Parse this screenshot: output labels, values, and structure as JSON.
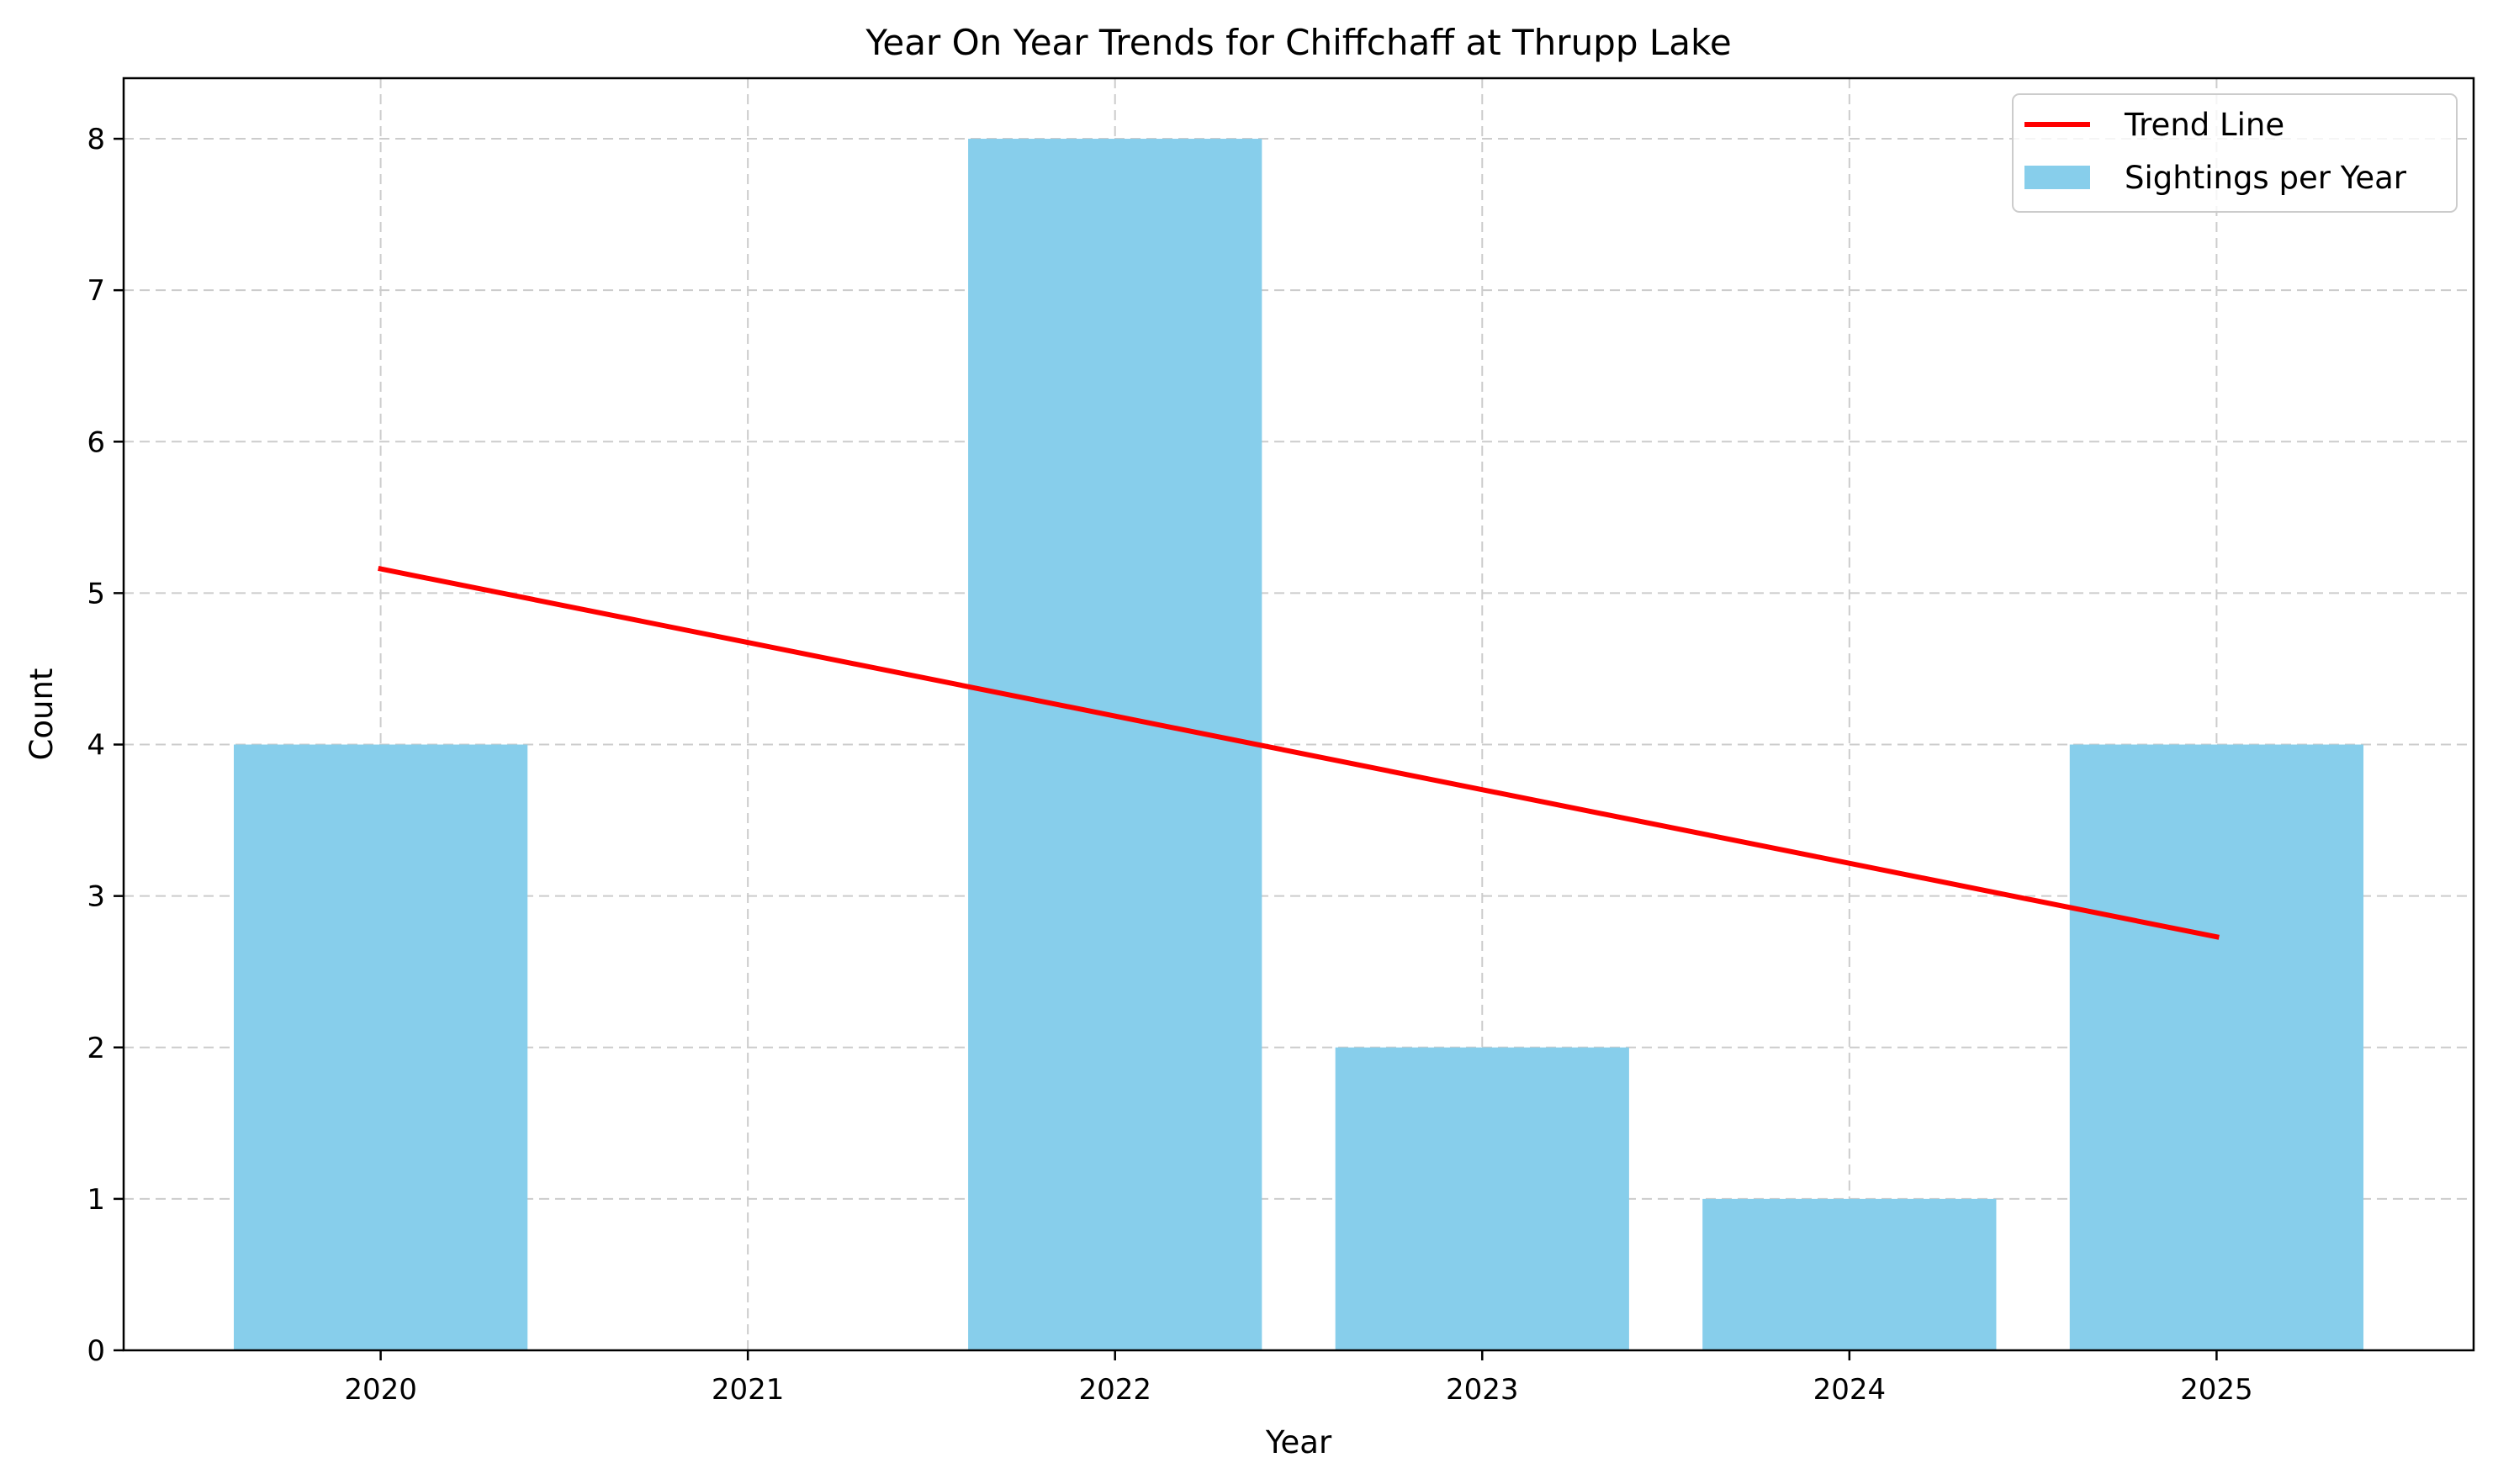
{
  "chart_data": {
    "type": "bar",
    "title": "Year On Year Trends for Chiffchaff at Thrupp Lake",
    "xlabel": "Year",
    "ylabel": "Count",
    "categories": [
      "2020",
      "2021",
      "2022",
      "2023",
      "2024",
      "2025"
    ],
    "x_range": [
      2019.3,
      2025.7
    ],
    "ylim": [
      0,
      8.4
    ],
    "yticks": [
      "0",
      "1",
      "2",
      "3",
      "4",
      "5",
      "6",
      "7",
      "8"
    ],
    "grid": true,
    "legend_position": "top-right",
    "series": [
      {
        "name": "Sightings per Year",
        "kind": "bar",
        "color": "#87ceeb",
        "values": [
          4,
          0,
          8,
          2,
          1,
          4
        ]
      },
      {
        "name": "Trend Line",
        "kind": "line",
        "color": "#ff0000",
        "x": [
          2020,
          2025
        ],
        "y": [
          5.16,
          2.73
        ]
      }
    ]
  }
}
